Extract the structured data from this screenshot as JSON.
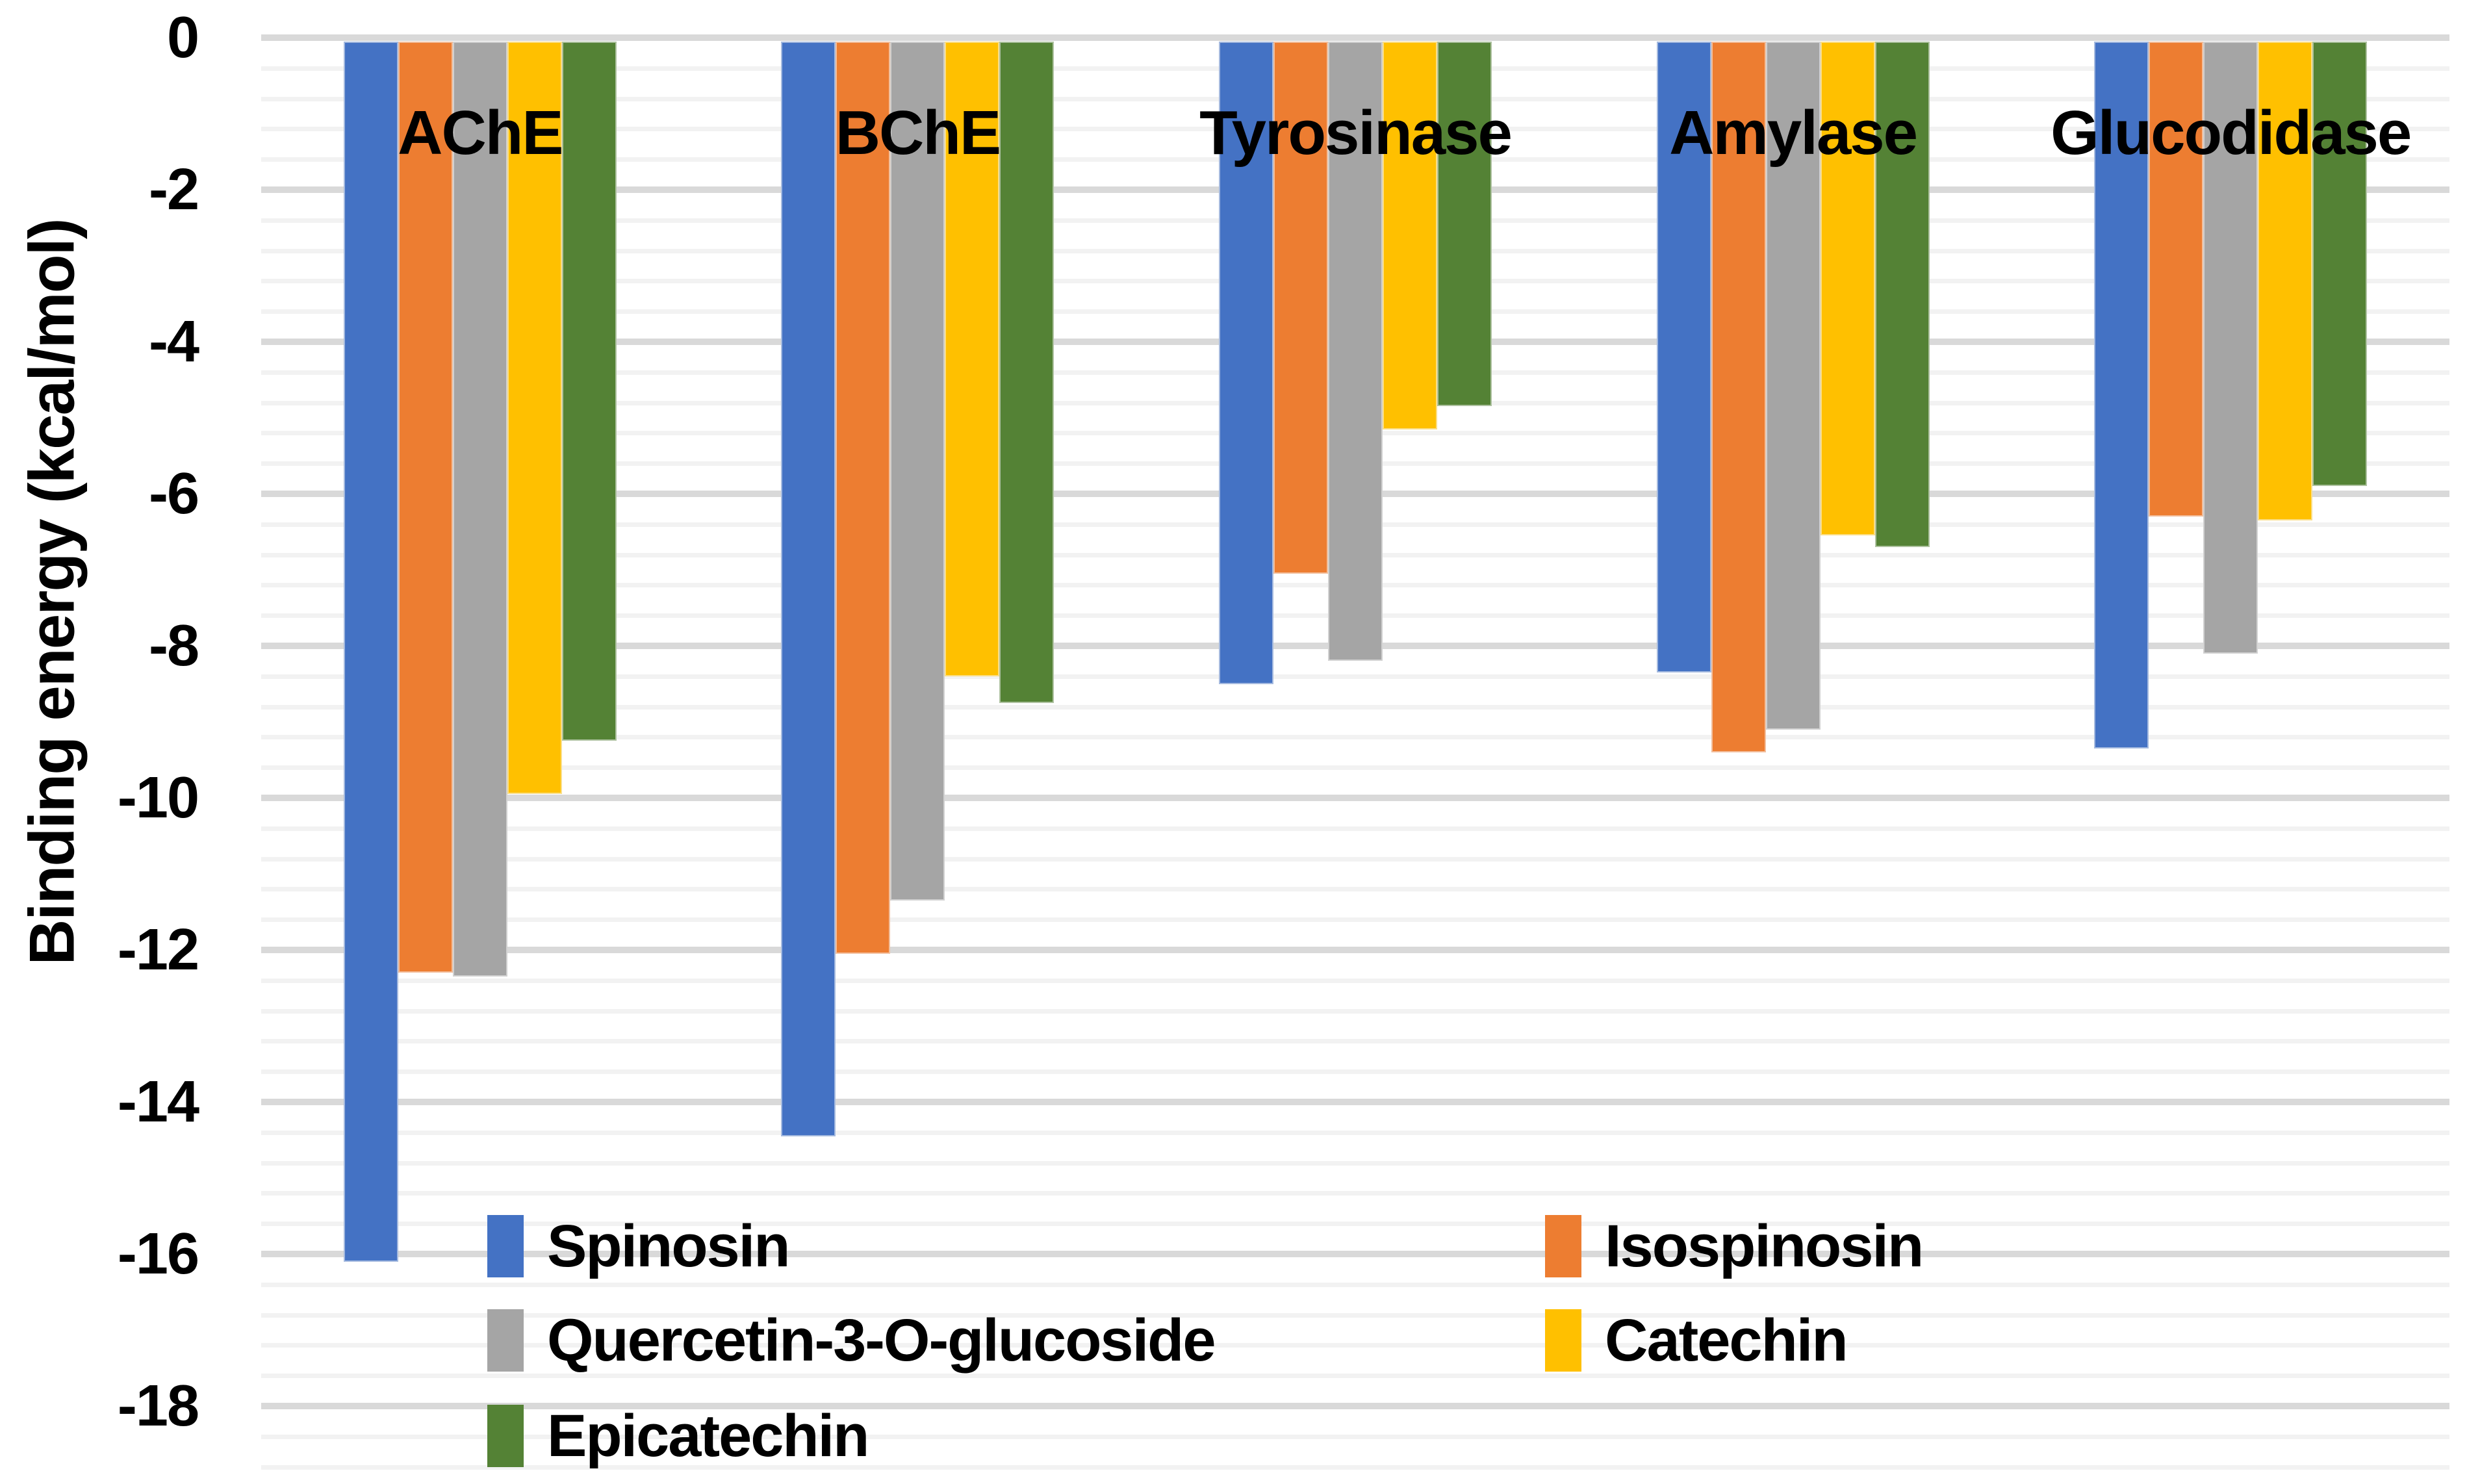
{
  "chart_data": {
    "type": "bar",
    "title": "",
    "orientation": "vertical-negative",
    "ylabel": "Binding energy (kcal/mol)",
    "xlabel": "",
    "categories": [
      "AChE",
      "BChE",
      "Tyrosinase",
      "Amylase",
      "Glucodidase"
    ],
    "series": [
      {
        "name": "Spinosin",
        "color": "#4472C4",
        "values": [
          -16.1,
          -14.45,
          -8.5,
          -8.35,
          -9.35
        ]
      },
      {
        "name": "Isospinosin",
        "color": "#ED7D31",
        "values": [
          -12.3,
          -12.05,
          -7.05,
          -9.4,
          -6.3
        ]
      },
      {
        "name": "Quercetin-3-O-glucoside",
        "color": "#A5A5A5",
        "values": [
          -12.35,
          -11.35,
          -8.2,
          -9.1,
          -8.1
        ]
      },
      {
        "name": "Catechin",
        "color": "#FFC000",
        "values": [
          -9.95,
          -8.4,
          -5.15,
          -6.55,
          -6.35
        ]
      },
      {
        "name": "Epicatechin",
        "color": "#548235",
        "values": [
          -9.25,
          -8.75,
          -4.85,
          -6.7,
          -5.9
        ]
      }
    ],
    "y_axis": {
      "min": -18,
      "max": 0,
      "major_step": 2,
      "minor_step": 0.4,
      "tick_labels": [
        "0",
        "-2",
        "-4",
        "-6",
        "-8",
        "-10",
        "-12",
        "-14",
        "-16",
        "-18"
      ]
    },
    "legend": {
      "position": "bottom-inside",
      "columns": 2
    },
    "grid": {
      "on": true,
      "major_color": "#D9D9D9",
      "minor_color": "#F2F2F2"
    },
    "text_color": "#000000",
    "background_color": "#FFFFFF"
  }
}
